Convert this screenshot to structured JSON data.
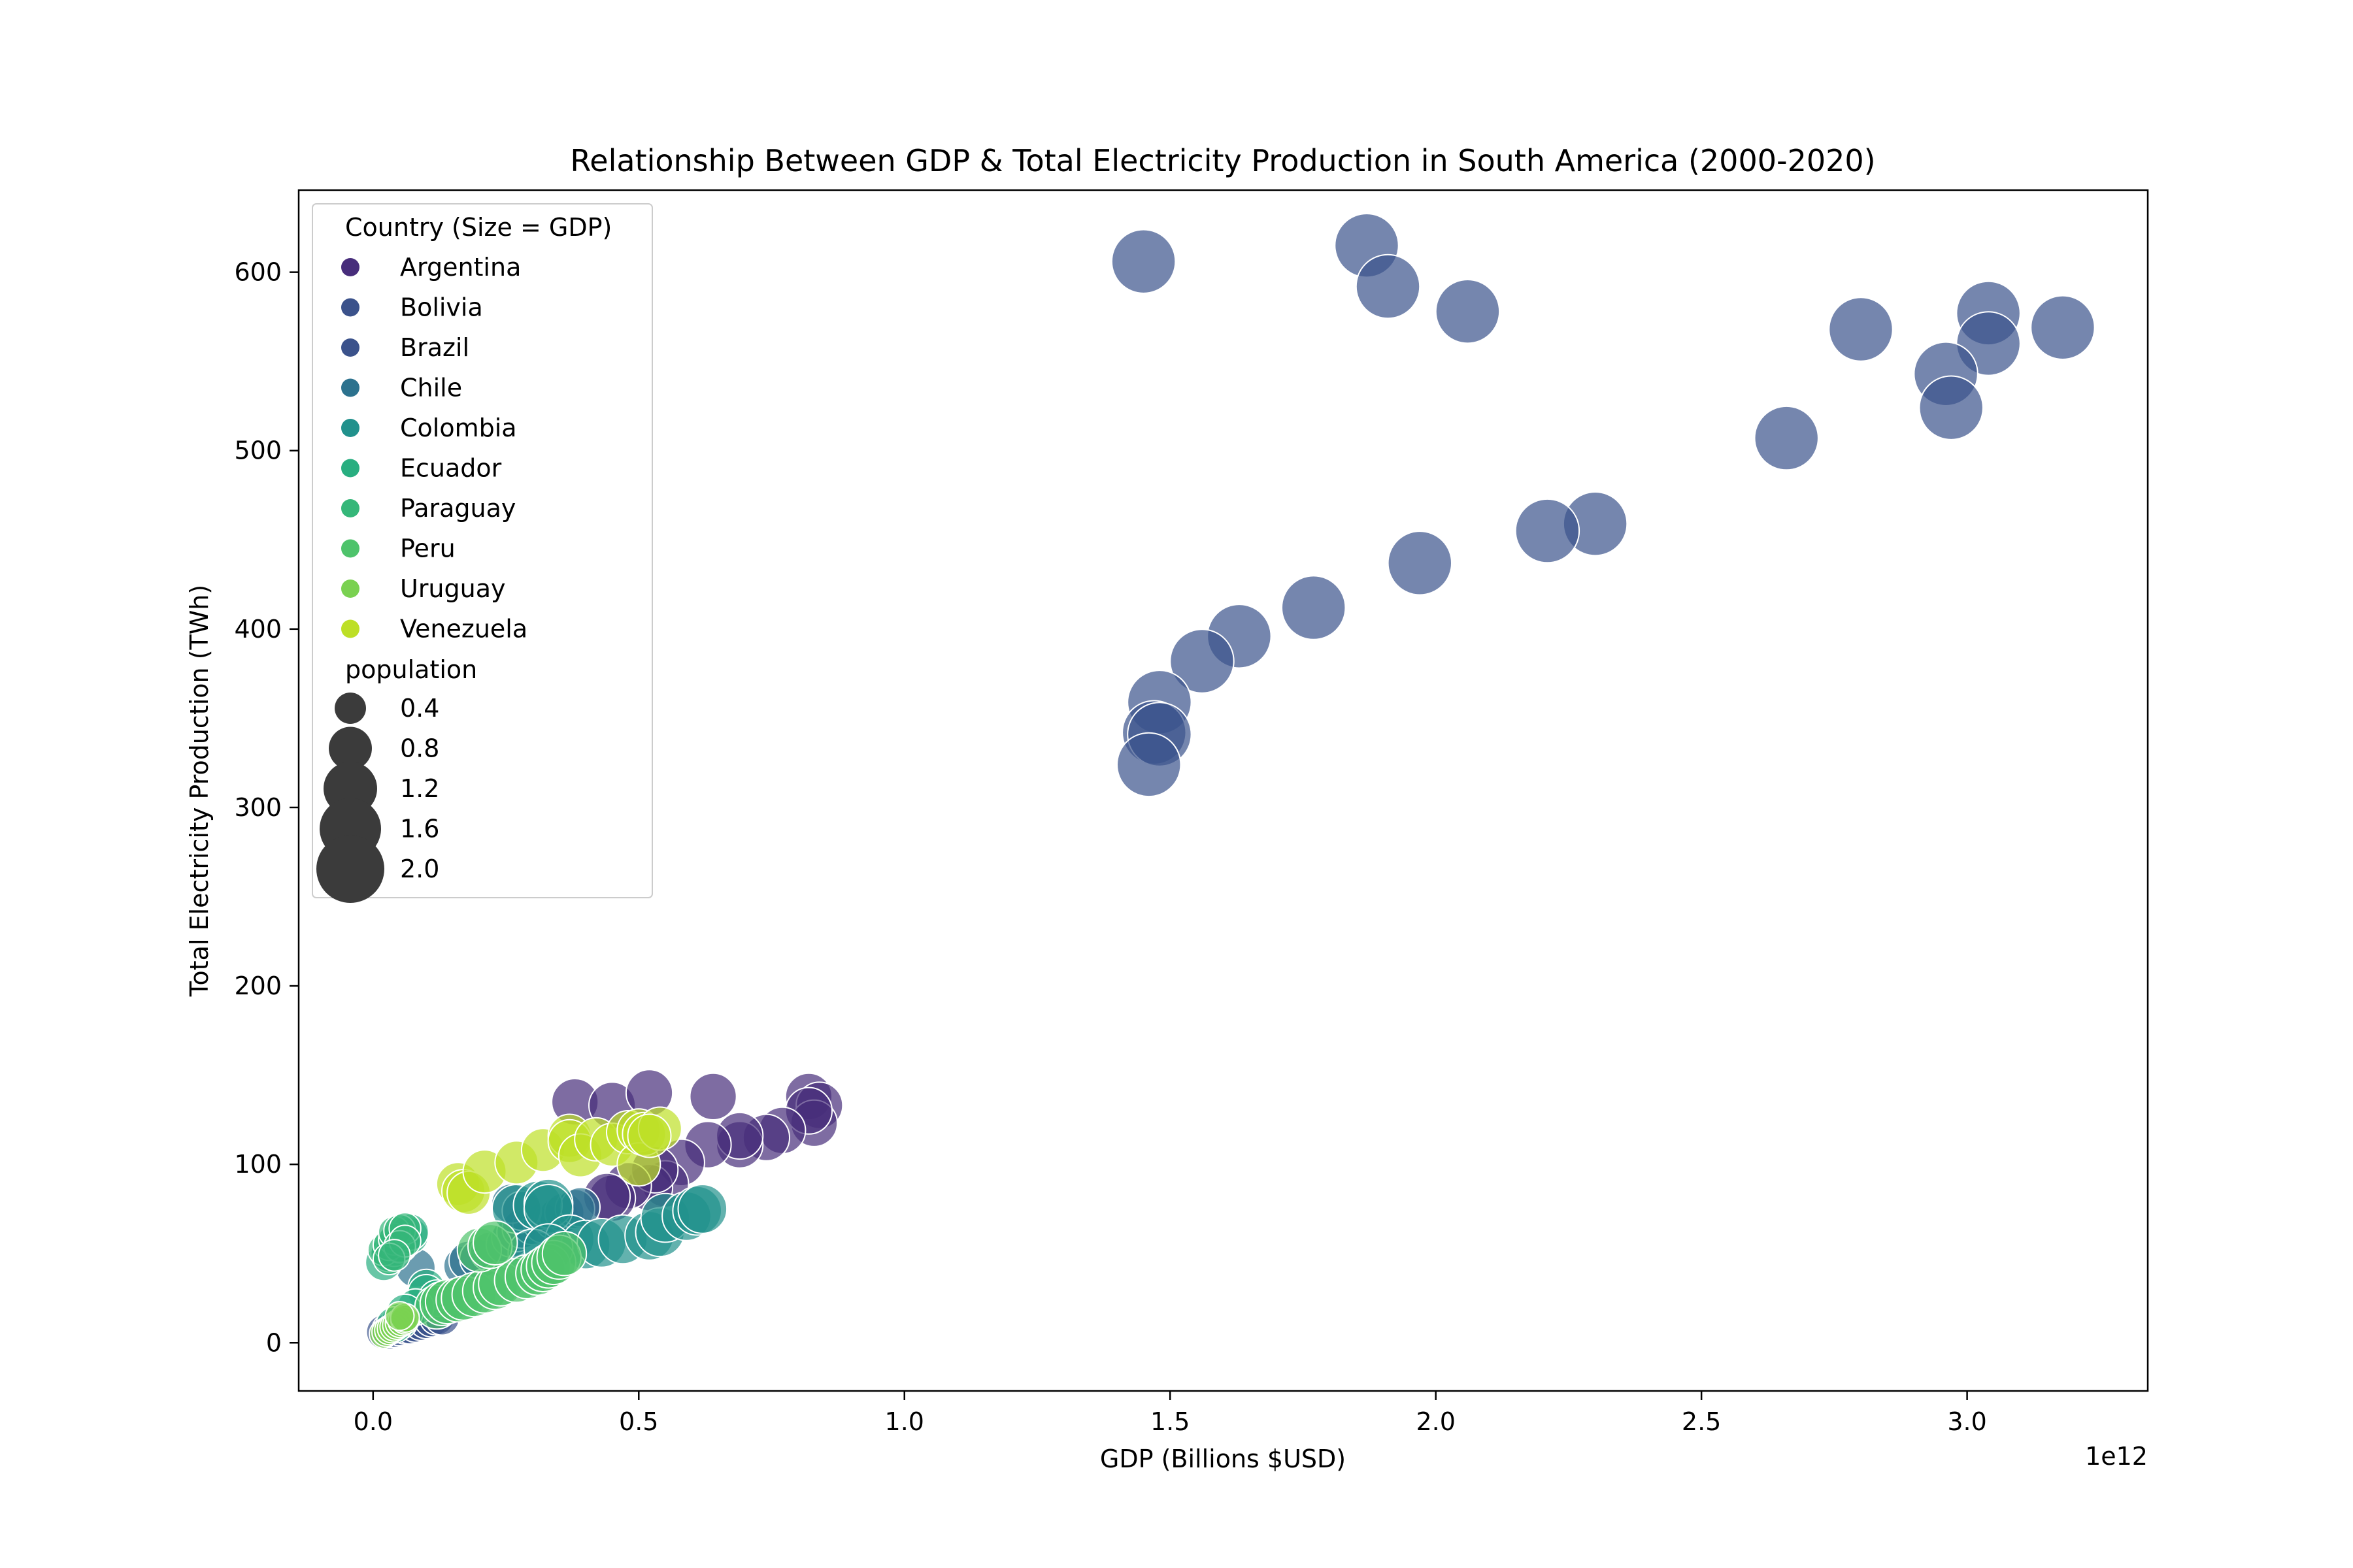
{
  "chart_data": {
    "type": "scatter",
    "title": "Relationship Between GDP & Total Electricity Production in South America (2000-2020)",
    "xlabel": "GDP (Billions $USD)",
    "ylabel": "Total Electricity Production (TWh)",
    "x_offset_label": "1e12",
    "xlim": [
      -0.14,
      3.34
    ],
    "ylim": [
      -27,
      646
    ],
    "x_ticks": [
      0.0,
      0.5,
      1.0,
      1.5,
      2.0,
      2.5,
      3.0
    ],
    "x_tick_labels": [
      "0.0",
      "0.5",
      "1.0",
      "1.5",
      "2.0",
      "2.5",
      "3.0"
    ],
    "y_ticks": [
      0,
      100,
      200,
      300,
      400,
      500,
      600
    ],
    "y_tick_labels": [
      "0",
      "100",
      "200",
      "300",
      "400",
      "500",
      "600"
    ],
    "x_unit_note": "x values in units of 1e12",
    "grid": false,
    "point_alpha": 0.7,
    "legend": {
      "placement": "upper-left",
      "hue_title": "Country (Size = GDP)",
      "size_title": "population",
      "size_entries": [
        {
          "label": "0.4",
          "value": 0.4
        },
        {
          "label": "0.8",
          "value": 0.8
        },
        {
          "label": "1.2",
          "value": 1.2
        },
        {
          "label": "1.6",
          "value": 1.6
        },
        {
          "label": "2.0",
          "value": 2.0
        }
      ]
    },
    "series": [
      {
        "name": "Argentina",
        "color": "#472d7b",
        "size": 0.36,
        "points": [
          [
            0.38,
            135
          ],
          [
            0.45,
            133
          ],
          [
            0.52,
            140
          ],
          [
            0.64,
            138
          ],
          [
            0.82,
            138
          ],
          [
            0.84,
            133
          ],
          [
            0.83,
            123
          ],
          [
            0.82,
            130
          ],
          [
            0.77,
            119
          ],
          [
            0.74,
            115
          ],
          [
            0.69,
            111
          ],
          [
            0.69,
            116
          ],
          [
            0.63,
            111
          ],
          [
            0.58,
            101
          ],
          [
            0.55,
            89
          ],
          [
            0.52,
            87
          ],
          [
            0.53,
            97
          ],
          [
            0.48,
            88
          ],
          [
            0.45,
            81
          ],
          [
            0.44,
            82
          ]
        ]
      },
      {
        "name": "Bolivia",
        "color": "#3b528b",
        "size": 0.12,
        "points": [
          [
            0.02,
            6
          ],
          [
            0.03,
            6
          ],
          [
            0.03,
            7
          ],
          [
            0.04,
            7
          ],
          [
            0.05,
            8
          ],
          [
            0.06,
            9
          ],
          [
            0.07,
            9
          ],
          [
            0.08,
            10
          ],
          [
            0.09,
            11
          ],
          [
            0.1,
            12
          ],
          [
            0.11,
            13
          ],
          [
            0.12,
            14
          ],
          [
            0.13,
            14
          ]
        ]
      },
      {
        "name": "Brazil",
        "color": "#3b528b",
        "size": 0.93,
        "points": [
          [
            1.45,
            606
          ],
          [
            1.87,
            615
          ],
          [
            1.91,
            592
          ],
          [
            2.06,
            578
          ],
          [
            2.8,
            568
          ],
          [
            3.04,
            577
          ],
          [
            3.18,
            569
          ],
          [
            3.04,
            560
          ],
          [
            2.96,
            543
          ],
          [
            2.97,
            524
          ],
          [
            2.66,
            507
          ],
          [
            2.3,
            459
          ],
          [
            2.21,
            455
          ],
          [
            1.97,
            437
          ],
          [
            1.77,
            412
          ],
          [
            1.63,
            396
          ],
          [
            1.56,
            382
          ],
          [
            1.48,
            359
          ],
          [
            1.47,
            342
          ],
          [
            1.48,
            341
          ],
          [
            1.46,
            324
          ]
        ]
      },
      {
        "name": "Chile",
        "color": "#2c728e",
        "size": 0.2,
        "points": [
          [
            0.08,
            42
          ],
          [
            0.17,
            43
          ],
          [
            0.18,
            46
          ],
          [
            0.2,
            47
          ],
          [
            0.22,
            51
          ],
          [
            0.25,
            55
          ],
          [
            0.26,
            59
          ],
          [
            0.27,
            62
          ],
          [
            0.28,
            64
          ],
          [
            0.3,
            66
          ],
          [
            0.32,
            67
          ],
          [
            0.34,
            69
          ],
          [
            0.35,
            71
          ],
          [
            0.36,
            73
          ],
          [
            0.38,
            75
          ],
          [
            0.39,
            76
          ],
          [
            0.26,
            78
          ],
          [
            0.28,
            74
          ]
        ]
      },
      {
        "name": "Colombia",
        "color": "#21918c",
        "size": 0.42,
        "points": [
          [
            0.27,
            75
          ],
          [
            0.31,
            77
          ],
          [
            0.33,
            78
          ],
          [
            0.33,
            75
          ],
          [
            0.37,
            58
          ],
          [
            0.4,
            55
          ],
          [
            0.43,
            56
          ],
          [
            0.47,
            58
          ],
          [
            0.52,
            60
          ],
          [
            0.54,
            62
          ],
          [
            0.55,
            70
          ],
          [
            0.59,
            71
          ],
          [
            0.61,
            74
          ],
          [
            0.62,
            75
          ],
          [
            0.3,
            50
          ],
          [
            0.33,
            53
          ]
        ]
      },
      {
        "name": "Ecuador",
        "color": "#28ae80",
        "size": 0.15,
        "points": [
          [
            0.02,
            45
          ],
          [
            0.03,
            50
          ],
          [
            0.04,
            53
          ],
          [
            0.05,
            55
          ],
          [
            0.06,
            58
          ],
          [
            0.07,
            60
          ],
          [
            0.07,
            62
          ],
          [
            0.1,
            31
          ],
          [
            0.1,
            28
          ],
          [
            0.12,
            25
          ],
          [
            0.08,
            20
          ],
          [
            0.06,
            17
          ],
          [
            0.05,
            12
          ],
          [
            0.04,
            10
          ]
        ]
      },
      {
        "name": "Paraguay",
        "color": "#35b779",
        "size": 0.08,
        "points": [
          [
            0.02,
            52
          ],
          [
            0.03,
            55
          ],
          [
            0.04,
            58
          ],
          [
            0.04,
            62
          ],
          [
            0.05,
            63
          ],
          [
            0.06,
            64
          ],
          [
            0.05,
            54
          ],
          [
            0.06,
            57
          ],
          [
            0.03,
            47
          ],
          [
            0.04,
            49
          ]
        ]
      },
      {
        "name": "Peru",
        "color": "#4ec36b",
        "size": 0.3,
        "points": [
          [
            0.12,
            20
          ],
          [
            0.13,
            22
          ],
          [
            0.14,
            23
          ],
          [
            0.16,
            24
          ],
          [
            0.17,
            25
          ],
          [
            0.19,
            27
          ],
          [
            0.21,
            29
          ],
          [
            0.23,
            31
          ],
          [
            0.24,
            33
          ],
          [
            0.27,
            35
          ],
          [
            0.29,
            37
          ],
          [
            0.31,
            39
          ],
          [
            0.32,
            41
          ],
          [
            0.33,
            43
          ],
          [
            0.34,
            45
          ],
          [
            0.35,
            48
          ],
          [
            0.36,
            50
          ],
          [
            0.2,
            52
          ],
          [
            0.22,
            54
          ],
          [
            0.23,
            56
          ]
        ]
      },
      {
        "name": "Uruguay",
        "color": "#7ad151",
        "size": 0.05,
        "points": [
          [
            0.02,
            5
          ],
          [
            0.025,
            6
          ],
          [
            0.03,
            7
          ],
          [
            0.035,
            8
          ],
          [
            0.04,
            9
          ],
          [
            0.045,
            10
          ],
          [
            0.05,
            11
          ],
          [
            0.055,
            12
          ],
          [
            0.06,
            13
          ],
          [
            0.06,
            14
          ],
          [
            0.05,
            15
          ]
        ]
      },
      {
        "name": "Venezuela",
        "color": "#bddf26",
        "size": 0.28,
        "points": [
          [
            0.16,
            89
          ],
          [
            0.17,
            85
          ],
          [
            0.18,
            84
          ],
          [
            0.21,
            96
          ],
          [
            0.27,
            101
          ],
          [
            0.32,
            108
          ],
          [
            0.37,
            116
          ],
          [
            0.37,
            113
          ],
          [
            0.39,
            105
          ],
          [
            0.42,
            114
          ],
          [
            0.45,
            111
          ],
          [
            0.48,
            118
          ],
          [
            0.5,
            119
          ],
          [
            0.5,
            100
          ],
          [
            0.51,
            117
          ],
          [
            0.54,
            120
          ],
          [
            0.52,
            116
          ]
        ]
      }
    ]
  }
}
